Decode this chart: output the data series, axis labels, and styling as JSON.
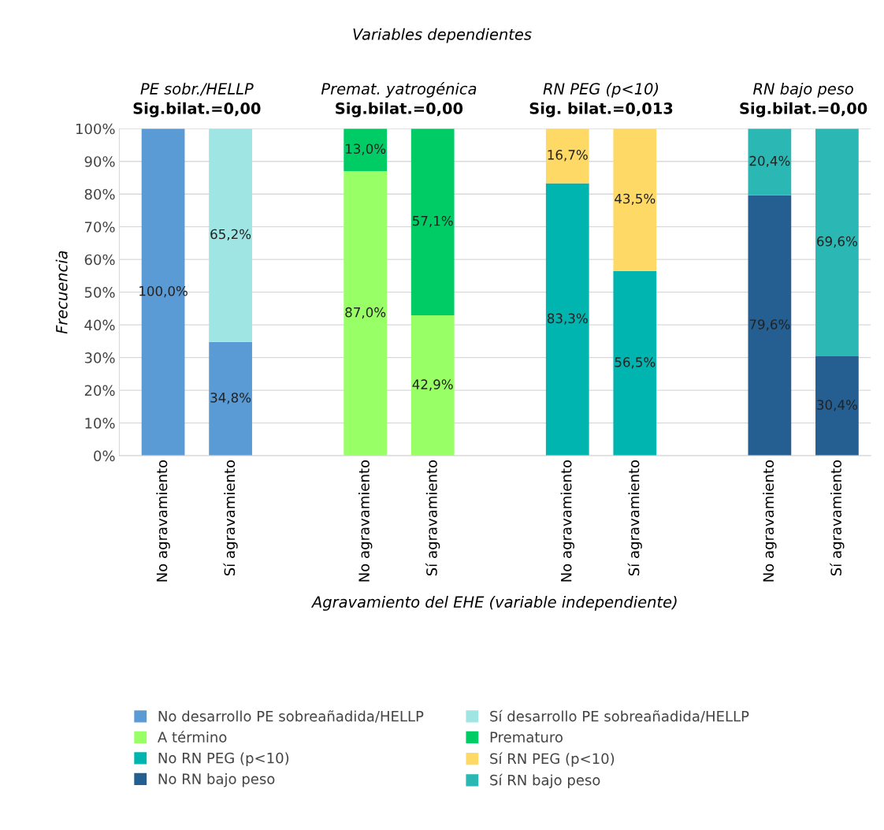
{
  "chart_data": {
    "type": "bar",
    "stacked": true,
    "title": "Variables dependientes",
    "xlabel": "Agravamiento del EHE (variable independiente)",
    "ylabel": "Frecuencia",
    "categories": [
      "No agravamiento",
      "Sí agravamiento",
      null,
      "No agravamiento",
      "Sí agravamiento",
      null,
      "No agravamiento",
      "Sí agravamiento",
      null,
      "No agravamiento",
      "Sí agravamiento"
    ],
    "annotations": [
      "PE sobr./HELLP",
      "Sig.bilat.=0,00",
      "Premat. yatrogénica",
      "Sig.bilat.=0,00",
      "RN PEG (p<10)",
      "Sig. bilat.=0,013",
      "RN bajo peso",
      "Sig.bilat.=0,00"
    ],
    "ylim": [
      0,
      100
    ],
    "yticks": [
      {
        "value": 0,
        "label": "0%"
      },
      {
        "value": 10,
        "label": "10%"
      },
      {
        "value": 20,
        "label": "20%"
      },
      {
        "value": 30,
        "label": "30%"
      },
      {
        "value": 40,
        "label": "40%"
      },
      {
        "value": 50,
        "label": "50%"
      },
      {
        "value": 60,
        "label": "60%"
      },
      {
        "value": 70,
        "label": "70%"
      },
      {
        "value": 80,
        "label": "80%"
      },
      {
        "value": 90,
        "label": "90%"
      },
      {
        "value": 100,
        "label": "100%"
      }
    ],
    "grid": "y",
    "legend": "bottom",
    "series": [
      {
        "name": "No desarrollo PE sobreañadida/HELLP",
        "color": "#5b9bd5",
        "values": [
          100,
          34.8,
          null,
          null,
          null,
          null,
          null,
          null,
          null,
          null,
          null
        ],
        "value_labels": [
          "100,0%",
          "34,8%",
          null,
          null,
          null,
          null,
          null,
          null,
          null,
          null,
          null
        ]
      },
      {
        "name": "Sí desarrollo PE sobreañadida/HELLP",
        "color": "#9fe5e3",
        "values": [
          0,
          65.2,
          null,
          null,
          null,
          null,
          null,
          null,
          null,
          null,
          null
        ],
        "value_labels": [
          null,
          "65,2%",
          null,
          null,
          null,
          null,
          null,
          null,
          null,
          null,
          null
        ]
      },
      {
        "name": "A término",
        "color": "#99ff66",
        "values": [
          null,
          null,
          null,
          87.0,
          42.9,
          null,
          null,
          null,
          null,
          null,
          null
        ],
        "value_labels": [
          null,
          null,
          null,
          "87,0%",
          "42,9%",
          null,
          null,
          null,
          null,
          null,
          null
        ]
      },
      {
        "name": "Prematuro",
        "color": "#00cc66",
        "values": [
          null,
          null,
          null,
          13.0,
          57.1,
          null,
          null,
          null,
          null,
          null,
          null
        ],
        "value_labels": [
          null,
          null,
          null,
          "13,0%",
          "57,1%",
          null,
          null,
          null,
          null,
          null,
          null
        ]
      },
      {
        "name": "No RN PEG (p<10)",
        "color": "#00b4b0",
        "values": [
          null,
          null,
          null,
          null,
          null,
          null,
          83.3,
          56.5,
          null,
          null,
          null
        ],
        "value_labels": [
          null,
          null,
          null,
          null,
          null,
          null,
          "83,3%",
          "56,5%",
          null,
          null,
          null
        ]
      },
      {
        "name": "Sí RN PEG (p<10)",
        "color": "#ffd966",
        "values": [
          null,
          null,
          null,
          null,
          null,
          null,
          16.7,
          43.5,
          null,
          null,
          null
        ],
        "value_labels": [
          null,
          null,
          null,
          null,
          null,
          null,
          "16,7%",
          "43,5%",
          null,
          null,
          null
        ]
      },
      {
        "name": "No RN bajo peso",
        "color": "#255e91",
        "values": [
          null,
          null,
          null,
          null,
          null,
          null,
          null,
          null,
          null,
          79.6,
          30.4
        ],
        "value_labels": [
          null,
          null,
          null,
          null,
          null,
          null,
          null,
          null,
          null,
          "79,6%",
          "30,4%"
        ]
      },
      {
        "name": "Sí RN bajo peso",
        "color": "#2bb8b4",
        "values": [
          null,
          null,
          null,
          null,
          null,
          null,
          null,
          null,
          null,
          20.4,
          69.6
        ],
        "value_labels": [
          null,
          null,
          null,
          null,
          null,
          null,
          null,
          null,
          null,
          "20,4%",
          "69,6%"
        ]
      }
    ]
  }
}
